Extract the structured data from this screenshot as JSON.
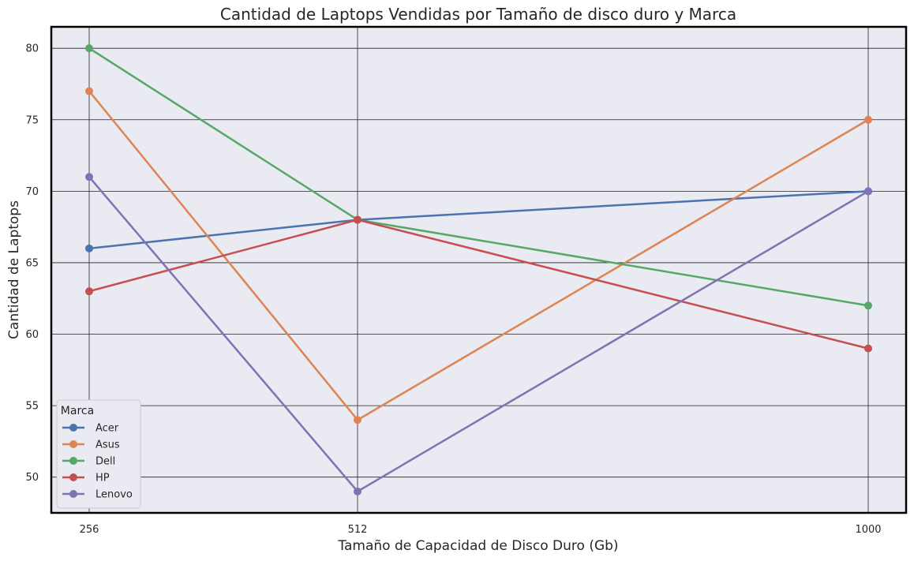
{
  "chart_data": {
    "type": "line",
    "title": "Cantidad de Laptops Vendidas por Tamaño de disco duro y Marca",
    "xlabel": "Tamaño de Capacidad de Disco Duro (Gb)",
    "ylabel": "Cantidad de Laptops",
    "x": [
      256,
      512,
      1000
    ],
    "x_tick_labels": [
      "256",
      "512",
      "1000"
    ],
    "ylim": [
      47.5,
      81.5
    ],
    "y_ticks": [
      50,
      55,
      60,
      65,
      70,
      75,
      80
    ],
    "grid": true,
    "legend": {
      "title": "Marca",
      "placement": "lower-left"
    },
    "series": [
      {
        "name": "Acer",
        "color": "#4c72b0",
        "values": [
          66,
          68,
          70
        ]
      },
      {
        "name": "Asus",
        "color": "#dd8452",
        "values": [
          77,
          54,
          75
        ]
      },
      {
        "name": "Dell",
        "color": "#55a868",
        "values": [
          80,
          68,
          62
        ]
      },
      {
        "name": "HP",
        "color": "#c44e52",
        "values": [
          63,
          68,
          59
        ]
      },
      {
        "name": "Lenovo",
        "color": "#8172b3",
        "values": [
          71,
          49,
          70
        ]
      }
    ]
  }
}
